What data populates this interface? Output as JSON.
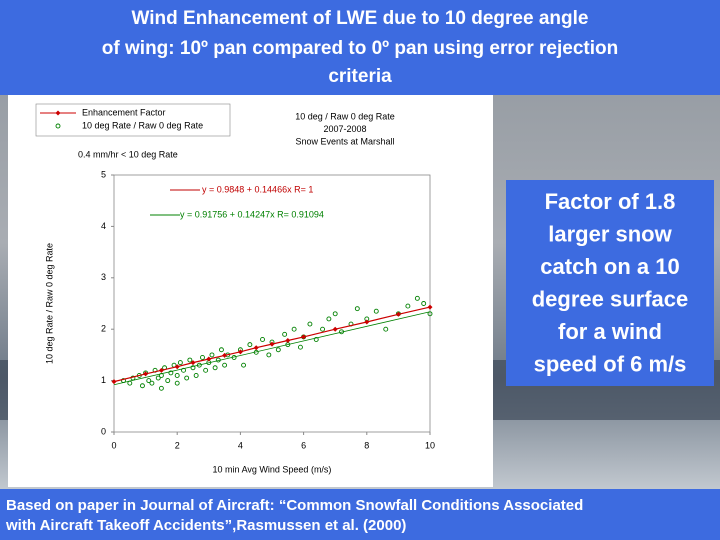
{
  "slide": {
    "title": [
      "Wind Enhancement of LWE due to 10 degree angle",
      "of wing: 10º pan compared to 0º pan using error rejection",
      "criteria"
    ],
    "callout": [
      "Factor of 1.8",
      "larger snow",
      "catch on a 10",
      "degree surface",
      "for a wind",
      "speed of 6 m/s"
    ],
    "footer": [
      "Based on paper in Journal of Aircraft: “Common Snowfall Conditions Associated",
      "with Aircraft Takeoff Accidents”,Rasmussen et al. (2000)"
    ]
  },
  "chart_data": {
    "type": "scatter",
    "title": [
      "10 deg / Raw 0 deg Rate",
      "2007-2008",
      "Snow Events at Marshall"
    ],
    "subtitle": "0.4 mm/hr < 10 deg Rate",
    "x_label": "10 min Avg Wind Speed (m/s)",
    "y_label": "10 deg Rate / Raw 0 deg Rate",
    "annotations": [
      {
        "text": "y = 0.9848 + 0.14466x   R= 1",
        "color": "#c00000"
      },
      {
        "text": "y = 0.91756 + 0.14247x   R= 0.91094",
        "color": "#008000"
      }
    ],
    "xlim": [
      0,
      10
    ],
    "ylim": [
      0,
      5
    ],
    "xticks": [
      0,
      2,
      4,
      6,
      8,
      10
    ],
    "yticks": [
      0,
      1,
      2,
      3,
      4,
      5
    ],
    "grid": false,
    "legend": "top-left",
    "series": [
      {
        "name": "Enhancement Factor",
        "color": "#cc0000",
        "marker": "diamond",
        "line": true,
        "x": [
          0,
          1,
          1.5,
          2,
          2.5,
          3,
          3.5,
          4,
          4.5,
          5,
          5.5,
          6,
          7,
          8,
          9,
          10
        ],
        "values": [
          0.98,
          1.13,
          1.2,
          1.27,
          1.35,
          1.42,
          1.49,
          1.56,
          1.64,
          1.71,
          1.78,
          1.85,
          2.0,
          2.14,
          2.29,
          2.43
        ]
      },
      {
        "name": "10 deg Rate / Raw 0 deg Rate",
        "color": "#008000",
        "marker": "circle",
        "line": false,
        "x": [
          0.3,
          0.5,
          0.6,
          0.8,
          0.9,
          1.0,
          1.1,
          1.2,
          1.3,
          1.4,
          1.5,
          1.5,
          1.6,
          1.7,
          1.8,
          1.9,
          2.0,
          2.0,
          2.1,
          2.2,
          2.3,
          2.4,
          2.5,
          2.6,
          2.7,
          2.8,
          2.9,
          3.0,
          3.1,
          3.2,
          3.3,
          3.4,
          3.5,
          3.6,
          3.8,
          4.0,
          4.1,
          4.3,
          4.5,
          4.7,
          4.9,
          5.0,
          5.2,
          5.4,
          5.5,
          5.7,
          5.9,
          6.0,
          6.2,
          6.4,
          6.6,
          6.8,
          7.0,
          7.2,
          7.5,
          7.7,
          8.0,
          8.3,
          8.6,
          9.0,
          9.3,
          9.6,
          9.8,
          10.0
        ],
        "values": [
          1.0,
          0.95,
          1.05,
          1.1,
          0.9,
          1.15,
          1.0,
          0.95,
          1.2,
          1.05,
          1.1,
          0.85,
          1.25,
          1.0,
          1.15,
          1.3,
          1.1,
          0.95,
          1.35,
          1.2,
          1.05,
          1.4,
          1.25,
          1.1,
          1.3,
          1.45,
          1.2,
          1.35,
          1.5,
          1.25,
          1.4,
          1.6,
          1.3,
          1.5,
          1.45,
          1.6,
          1.3,
          1.7,
          1.55,
          1.8,
          1.5,
          1.75,
          1.6,
          1.9,
          1.7,
          2.0,
          1.65,
          1.85,
          2.1,
          1.8,
          2.0,
          2.2,
          2.3,
          1.95,
          2.1,
          2.4,
          2.2,
          2.35,
          2.0,
          2.3,
          2.45,
          2.6,
          2.5,
          2.3
        ]
      }
    ],
    "trendlines": [
      {
        "color": "#008000",
        "x": [
          0,
          10
        ],
        "values": [
          0.92,
          2.34
        ]
      }
    ]
  }
}
